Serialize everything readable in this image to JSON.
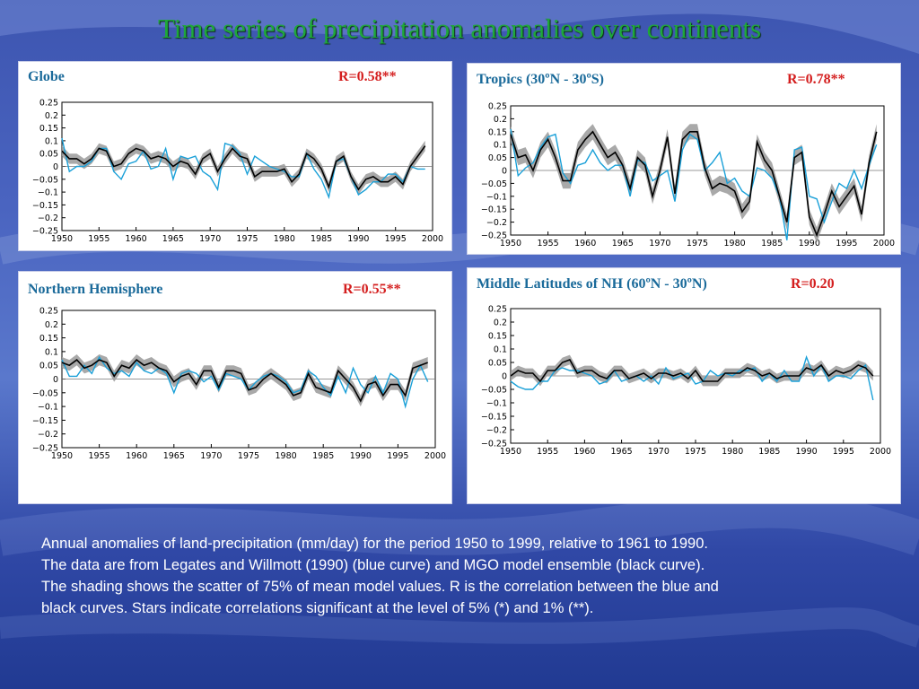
{
  "slide": {
    "title": "Time series of precipitation anomalies over continents",
    "caption_lines": [
      "Annual anomalies of land-precipitation (mm/day) for the period 1950 to 1999, relative to 1961 to 1990.",
      "The data are from Legates and Willmott (1990) (blue curve) and MGO model ensemble (black curve).",
      "The shading shows the scatter of 75% of mean model values. R is the correlation between the blue and",
      "black curves. Stars indicate correlations significant at the level of 5% (*) and 1% (**)."
    ]
  },
  "panels": [
    {
      "title": "Globe",
      "r_label": "R=0.58**"
    },
    {
      "title": "Tropics (30ºN - 30ºS)",
      "r_label": "R=0.78**"
    },
    {
      "title": "Northern Hemisphere",
      "r_label": "R=0.55**"
    },
    {
      "title": "Middle Latitudes of NH (60ºN - 30ºN)",
      "r_label": "R=0.20"
    }
  ],
  "colors": {
    "model": "#000000",
    "observed": "#1aa0d8",
    "spread": "#9a9a9a",
    "title": "#1fa83a",
    "r_label": "#d41e1e"
  },
  "chart_data": [
    {
      "type": "line",
      "x": [
        1950,
        1951,
        1952,
        1953,
        1954,
        1955,
        1956,
        1957,
        1958,
        1959,
        1960,
        1961,
        1962,
        1963,
        1964,
        1965,
        1966,
        1967,
        1968,
        1969,
        1970,
        1971,
        1972,
        1973,
        1974,
        1975,
        1976,
        1977,
        1978,
        1979,
        1980,
        1981,
        1982,
        1983,
        1984,
        1985,
        1986,
        1987,
        1988,
        1989,
        1990,
        1991,
        1992,
        1993,
        1994,
        1995,
        1996,
        1997,
        1998,
        1999
      ],
      "series": [
        {
          "values": [
            0.06,
            0.03,
            0.03,
            0.01,
            0.03,
            0.07,
            0.06,
            0.0,
            0.01,
            0.05,
            0.07,
            0.06,
            0.03,
            0.04,
            0.03,
            0.0,
            0.02,
            0.01,
            -0.03,
            0.03,
            0.05,
            -0.02,
            0.03,
            0.07,
            0.04,
            0.03,
            -0.04,
            -0.02,
            -0.02,
            -0.02,
            -0.01,
            -0.06,
            -0.03,
            0.05,
            0.03,
            -0.01,
            -0.08,
            0.02,
            0.04,
            -0.04,
            -0.09,
            -0.05,
            -0.04,
            -0.06,
            -0.06,
            -0.04,
            -0.07,
            0.0,
            0.04,
            0.08
          ]
        },
        {
          "values": [
            0.11,
            -0.02,
            0.0,
            0.0,
            0.02,
            0.07,
            0.07,
            -0.02,
            -0.05,
            0.01,
            0.02,
            0.06,
            -0.01,
            0.0,
            0.07,
            -0.05,
            0.04,
            0.03,
            0.04,
            -0.02,
            -0.04,
            -0.09,
            0.09,
            0.08,
            0.05,
            -0.03,
            0.04,
            0.02,
            0.0,
            -0.01,
            -0.02,
            -0.04,
            -0.04,
            0.05,
            -0.01,
            -0.05,
            -0.12,
            0.02,
            0.03,
            -0.04,
            -0.11,
            -0.09,
            -0.06,
            -0.06,
            -0.03,
            -0.03,
            -0.06,
            0.0,
            -0.01,
            -0.01
          ]
        }
      ],
      "ylim": [
        -0.25,
        0.25
      ],
      "yticks": [
        0.25,
        0.2,
        0.15,
        0.1,
        0.05,
        0,
        -0.05,
        -0.1,
        -0.15,
        -0.2,
        -0.25
      ],
      "ytick_labels": [
        "0.25",
        "0.2",
        "0.15",
        "0.1",
        "0.05",
        "0",
        "−0.05",
        "−0.1",
        "−0.15",
        "−0.2",
        "−0.25"
      ],
      "xticks": [
        1950,
        1955,
        1960,
        1965,
        1970,
        1975,
        1980,
        1985,
        1990,
        1995,
        2000
      ],
      "shading_halfwidth": 0.02
    },
    {
      "type": "line",
      "x": [
        1950,
        1951,
        1952,
        1953,
        1954,
        1955,
        1956,
        1957,
        1958,
        1959,
        1960,
        1961,
        1962,
        1963,
        1964,
        1965,
        1966,
        1967,
        1968,
        1969,
        1970,
        1971,
        1972,
        1973,
        1974,
        1975,
        1976,
        1977,
        1978,
        1979,
        1980,
        1981,
        1982,
        1983,
        1984,
        1985,
        1986,
        1987,
        1988,
        1989,
        1990,
        1991,
        1992,
        1993,
        1994,
        1995,
        1996,
        1997,
        1998,
        1999
      ],
      "series": [
        {
          "values": [
            0.14,
            0.05,
            0.06,
            0.0,
            0.08,
            0.12,
            0.05,
            -0.04,
            -0.04,
            0.08,
            0.12,
            0.15,
            0.1,
            0.05,
            0.07,
            0.02,
            -0.07,
            0.05,
            0.02,
            -0.1,
            0.0,
            0.13,
            -0.09,
            0.12,
            0.15,
            0.15,
            0.01,
            -0.07,
            -0.05,
            -0.06,
            -0.08,
            -0.16,
            -0.12,
            0.11,
            0.04,
            0.0,
            -0.1,
            -0.2,
            0.05,
            0.07,
            -0.18,
            -0.25,
            -0.17,
            -0.08,
            -0.14,
            -0.1,
            -0.06,
            -0.17,
            0.03,
            0.15
          ]
        },
        {
          "values": [
            0.16,
            -0.02,
            0.01,
            0.03,
            0.09,
            0.13,
            0.14,
            -0.01,
            -0.05,
            0.02,
            0.03,
            0.08,
            0.03,
            0.0,
            0.02,
            0.02,
            -0.1,
            0.04,
            0.03,
            -0.04,
            -0.02,
            0.0,
            -0.12,
            0.08,
            0.14,
            0.12,
            0.0,
            0.03,
            0.07,
            -0.05,
            -0.03,
            -0.08,
            -0.1,
            0.01,
            0.0,
            -0.03,
            -0.1,
            -0.27,
            0.08,
            0.09,
            -0.1,
            -0.11,
            -0.2,
            -0.12,
            -0.05,
            -0.07,
            0.0,
            -0.07,
            0.02,
            0.1
          ]
        }
      ],
      "ylim": [
        -0.25,
        0.25
      ],
      "yticks": [
        0.25,
        0.2,
        0.15,
        0.1,
        0.05,
        0,
        -0.05,
        -0.1,
        -0.15,
        -0.2,
        -0.25
      ],
      "ytick_labels": [
        "0.25",
        "0.2",
        "0.15",
        "0.1",
        "0.05",
        "0",
        "−0.05",
        "−0.1",
        "−0.15",
        "−0.2",
        "−0.25"
      ],
      "xticks": [
        1950,
        1955,
        1960,
        1965,
        1970,
        1975,
        1980,
        1985,
        1990,
        1995,
        2000
      ],
      "shading_halfwidth": 0.03
    },
    {
      "type": "line",
      "x": [
        1950,
        1951,
        1952,
        1953,
        1954,
        1955,
        1956,
        1957,
        1958,
        1959,
        1960,
        1961,
        1962,
        1963,
        1964,
        1965,
        1966,
        1967,
        1968,
        1969,
        1970,
        1971,
        1972,
        1973,
        1974,
        1975,
        1976,
        1977,
        1978,
        1979,
        1980,
        1981,
        1982,
        1983,
        1984,
        1985,
        1986,
        1987,
        1988,
        1989,
        1990,
        1991,
        1992,
        1993,
        1994,
        1995,
        1996,
        1997,
        1998,
        1999
      ],
      "series": [
        {
          "values": [
            0.06,
            0.05,
            0.07,
            0.04,
            0.05,
            0.07,
            0.06,
            0.01,
            0.05,
            0.04,
            0.07,
            0.05,
            0.06,
            0.04,
            0.03,
            -0.01,
            0.01,
            0.02,
            -0.02,
            0.03,
            0.03,
            -0.03,
            0.03,
            0.03,
            0.02,
            -0.04,
            -0.03,
            0.0,
            0.02,
            0.0,
            -0.02,
            -0.06,
            -0.05,
            0.02,
            -0.03,
            -0.04,
            -0.05,
            0.03,
            0.0,
            -0.03,
            -0.08,
            -0.02,
            -0.01,
            -0.06,
            -0.02,
            -0.02,
            -0.06,
            0.04,
            0.05,
            0.06
          ]
        },
        {
          "values": [
            0.07,
            0.01,
            0.01,
            0.05,
            0.02,
            0.08,
            0.04,
            0.02,
            0.03,
            0.01,
            0.06,
            0.03,
            0.02,
            0.04,
            0.02,
            -0.05,
            0.02,
            0.03,
            0.02,
            -0.01,
            0.01,
            -0.04,
            0.02,
            0.01,
            0.0,
            -0.04,
            -0.01,
            0.01,
            0.02,
            0.01,
            -0.01,
            -0.05,
            -0.04,
            0.03,
            0.01,
            -0.03,
            -0.06,
            0.01,
            -0.05,
            0.04,
            -0.02,
            -0.05,
            0.01,
            -0.05,
            0.02,
            0.0,
            -0.1,
            0.0,
            0.05,
            -0.01
          ]
        }
      ],
      "ylim": [
        -0.25,
        0.25
      ],
      "yticks": [
        0.25,
        0.2,
        0.15,
        0.1,
        0.05,
        0,
        -0.05,
        -0.1,
        -0.15,
        -0.2,
        -0.25
      ],
      "ytick_labels": [
        "0.25",
        "0.2",
        "0.15",
        "0.1",
        "0.05",
        "0",
        "−0.05",
        "−0.1",
        "−0.15",
        "−0.2",
        "−0.25"
      ],
      "xticks": [
        1950,
        1955,
        1960,
        1965,
        1970,
        1975,
        1980,
        1985,
        1990,
        1995,
        2000
      ],
      "shading_halfwidth": 0.02
    },
    {
      "type": "line",
      "x": [
        1950,
        1951,
        1952,
        1953,
        1954,
        1955,
        1956,
        1957,
        1958,
        1959,
        1960,
        1961,
        1962,
        1963,
        1964,
        1965,
        1966,
        1967,
        1968,
        1969,
        1970,
        1971,
        1972,
        1973,
        1974,
        1975,
        1976,
        1977,
        1978,
        1979,
        1980,
        1981,
        1982,
        1983,
        1984,
        1985,
        1986,
        1987,
        1988,
        1989,
        1990,
        1991,
        1992,
        1993,
        1994,
        1995,
        1996,
        1997,
        1998,
        1999
      ],
      "series": [
        {
          "values": [
            0.0,
            0.02,
            0.01,
            0.01,
            -0.02,
            0.02,
            0.02,
            0.05,
            0.06,
            0.01,
            0.02,
            0.02,
            0.0,
            -0.01,
            0.02,
            0.02,
            -0.01,
            0.0,
            0.01,
            -0.01,
            0.01,
            0.01,
            0.0,
            0.01,
            -0.01,
            0.02,
            -0.02,
            -0.02,
            -0.02,
            0.01,
            0.01,
            0.01,
            0.03,
            0.02,
            0.0,
            0.01,
            -0.01,
            0.0,
            0.0,
            0.0,
            0.03,
            0.02,
            0.04,
            0.0,
            0.02,
            0.01,
            0.02,
            0.04,
            0.03,
            0.0
          ]
        },
        {
          "values": [
            -0.02,
            -0.04,
            -0.05,
            -0.05,
            -0.02,
            -0.02,
            0.02,
            0.03,
            0.02,
            0.02,
            0.01,
            0.0,
            -0.03,
            -0.02,
            0.02,
            -0.02,
            -0.01,
            0.0,
            -0.02,
            0.0,
            -0.03,
            0.03,
            -0.01,
            0.0,
            0.01,
            -0.03,
            -0.02,
            0.02,
            0.0,
            0.01,
            0.0,
            0.02,
            0.02,
            0.03,
            -0.02,
            0.01,
            -0.02,
            0.02,
            -0.02,
            -0.02,
            0.07,
            0.0,
            0.04,
            -0.02,
            0.0,
            0.0,
            -0.01,
            0.02,
            0.04,
            -0.09
          ]
        }
      ],
      "ylim": [
        -0.25,
        0.25
      ],
      "yticks": [
        0.25,
        0.2,
        0.15,
        0.1,
        0.05,
        0,
        -0.05,
        -0.1,
        -0.15,
        -0.2,
        -0.25
      ],
      "ytick_labels": [
        "0.25",
        "0.2",
        "0.15",
        "0.1",
        "0.05",
        "0",
        "−0.05",
        "−0.1",
        "−0.15",
        "−0.2",
        "−0.25"
      ],
      "xticks": [
        1950,
        1955,
        1960,
        1965,
        1970,
        1975,
        1980,
        1985,
        1990,
        1995,
        2000
      ],
      "shading_halfwidth": 0.018
    }
  ]
}
